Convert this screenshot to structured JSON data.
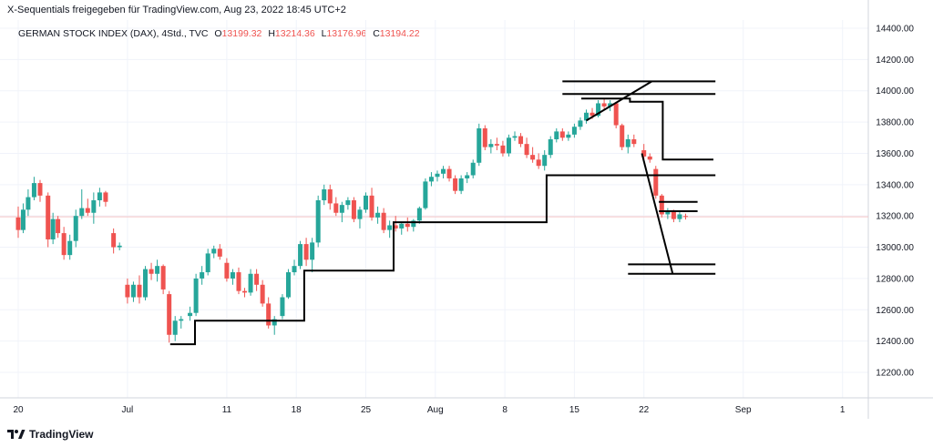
{
  "header": {
    "title": "X-Sequentials freigegeben für TradingView.com, Aug 23, 2022 18:45 UTC+2"
  },
  "legend": {
    "symbol": "GERMAN STOCK INDEX (DAX), 4Std., TVC",
    "o_label": "O",
    "o_value": "13199.32",
    "h_label": "H",
    "h_value": "13214.36",
    "l_label": "L",
    "l_value": "13176.96",
    "c_label": "C",
    "c_value": "13194.22"
  },
  "brand": {
    "name": "TradingView",
    "icon": "tradingview-logo-icon"
  },
  "colors": {
    "up": "#26a69a",
    "down": "#ef5350",
    "drawing": "#000000",
    "grid": "#f0f3fa",
    "last_price_line": "#f7c5c5"
  },
  "chart_data": {
    "type": "candlestick",
    "title": "",
    "ylim": [
      12050,
      14500
    ],
    "y_ticks": [
      "12200.00",
      "12400.00",
      "12600.00",
      "12800.00",
      "13000.00",
      "13200.00",
      "13400.00",
      "13600.00",
      "13800.00",
      "14000.00",
      "14200.00",
      "14400.00"
    ],
    "y_tick_values": [
      12200,
      12400,
      12600,
      12800,
      13000,
      13200,
      13400,
      13600,
      13800,
      14000,
      14200,
      14400
    ],
    "x_ticks": [
      "20",
      "Jul",
      "11",
      "18",
      "25",
      "Aug",
      "8",
      "15",
      "22",
      "Sep",
      "1"
    ],
    "x_tick_days": [
      0,
      11,
      21,
      28,
      35,
      42,
      49,
      56,
      63,
      73,
      83
    ],
    "x_days_note_hidden": true,
    "last_price": 13194.22,
    "candles": [
      {
        "d": 0,
        "o": 13190,
        "h": 13260,
        "l": 13060,
        "c": 13110
      },
      {
        "d": 0.5,
        "o": 13110,
        "h": 13280,
        "l": 13090,
        "c": 13240
      },
      {
        "d": 1,
        "o": 13240,
        "h": 13370,
        "l": 13200,
        "c": 13320
      },
      {
        "d": 1.6,
        "o": 13320,
        "h": 13450,
        "l": 13300,
        "c": 13410
      },
      {
        "d": 2.2,
        "o": 13410,
        "h": 13430,
        "l": 13290,
        "c": 13330
      },
      {
        "d": 3,
        "o": 13330,
        "h": 13350,
        "l": 13000,
        "c": 13050
      },
      {
        "d": 3.5,
        "o": 13050,
        "h": 13220,
        "l": 13020,
        "c": 13180
      },
      {
        "d": 4,
        "o": 13180,
        "h": 13200,
        "l": 13060,
        "c": 13090
      },
      {
        "d": 4.6,
        "o": 13090,
        "h": 13130,
        "l": 12920,
        "c": 12950
      },
      {
        "d": 5.2,
        "o": 12950,
        "h": 13080,
        "l": 12920,
        "c": 13040
      },
      {
        "d": 5.8,
        "o": 13040,
        "h": 13240,
        "l": 13000,
        "c": 13200
      },
      {
        "d": 6.4,
        "o": 13200,
        "h": 13370,
        "l": 13180,
        "c": 13250
      },
      {
        "d": 7,
        "o": 13250,
        "h": 13310,
        "l": 13200,
        "c": 13220
      },
      {
        "d": 7.6,
        "o": 13220,
        "h": 13350,
        "l": 13150,
        "c": 13300
      },
      {
        "d": 8.2,
        "o": 13300,
        "h": 13380,
        "l": 13260,
        "c": 13350
      },
      {
        "d": 8.8,
        "o": 13350,
        "h": 13360,
        "l": 13260,
        "c": 13290
      },
      {
        "d": 9.6,
        "o": 13090,
        "h": 13120,
        "l": 12960,
        "c": 13000
      },
      {
        "d": 10.2,
        "o": 13000,
        "h": 13030,
        "l": 12980,
        "c": 13010
      },
      {
        "d": 11,
        "o": 12760,
        "h": 12800,
        "l": 12640,
        "c": 12680
      },
      {
        "d": 11.6,
        "o": 12680,
        "h": 12780,
        "l": 12650,
        "c": 12760
      },
      {
        "d": 12.2,
        "o": 12760,
        "h": 12820,
        "l": 12640,
        "c": 12680
      },
      {
        "d": 12.8,
        "o": 12680,
        "h": 12880,
        "l": 12660,
        "c": 12860
      },
      {
        "d": 13.4,
        "o": 12860,
        "h": 12900,
        "l": 12790,
        "c": 12830
      },
      {
        "d": 14,
        "o": 12830,
        "h": 12920,
        "l": 12780,
        "c": 12880
      },
      {
        "d": 14.6,
        "o": 12880,
        "h": 12890,
        "l": 12700,
        "c": 12730
      },
      {
        "d": 15.2,
        "o": 12700,
        "h": 12720,
        "l": 12390,
        "c": 12440
      },
      {
        "d": 15.8,
        "o": 12440,
        "h": 12560,
        "l": 12400,
        "c": 12530
      },
      {
        "d": 16.4,
        "o": 12530,
        "h": 12560,
        "l": 12480,
        "c": 12540
      },
      {
        "d": 17.3,
        "o": 12560,
        "h": 12620,
        "l": 12530,
        "c": 12580
      },
      {
        "d": 17.9,
        "o": 12580,
        "h": 12830,
        "l": 12560,
        "c": 12800
      },
      {
        "d": 18.5,
        "o": 12800,
        "h": 12880,
        "l": 12760,
        "c": 12840
      },
      {
        "d": 19.1,
        "o": 12840,
        "h": 12990,
        "l": 12820,
        "c": 12960
      },
      {
        "d": 19.7,
        "o": 12960,
        "h": 13010,
        "l": 12930,
        "c": 12990
      },
      {
        "d": 20.3,
        "o": 12990,
        "h": 13020,
        "l": 12920,
        "c": 12940
      },
      {
        "d": 21,
        "o": 12900,
        "h": 12930,
        "l": 12780,
        "c": 12800
      },
      {
        "d": 21.6,
        "o": 12800,
        "h": 12860,
        "l": 12760,
        "c": 12840
      },
      {
        "d": 22.2,
        "o": 12840,
        "h": 12870,
        "l": 12700,
        "c": 12720
      },
      {
        "d": 22.8,
        "o": 12720,
        "h": 12740,
        "l": 12680,
        "c": 12710
      },
      {
        "d": 23.4,
        "o": 12710,
        "h": 12860,
        "l": 12690,
        "c": 12830
      },
      {
        "d": 24,
        "o": 12830,
        "h": 12860,
        "l": 12720,
        "c": 12760
      },
      {
        "d": 24.6,
        "o": 12760,
        "h": 12790,
        "l": 12620,
        "c": 12640
      },
      {
        "d": 25.2,
        "o": 12640,
        "h": 12680,
        "l": 12480,
        "c": 12500
      },
      {
        "d": 25.8,
        "o": 12500,
        "h": 12560,
        "l": 12440,
        "c": 12540
      },
      {
        "d": 26.6,
        "o": 12560,
        "h": 12700,
        "l": 12540,
        "c": 12680
      },
      {
        "d": 27.2,
        "o": 12680,
        "h": 12860,
        "l": 12670,
        "c": 12840
      },
      {
        "d": 27.8,
        "o": 12840,
        "h": 12920,
        "l": 12820,
        "c": 12880
      },
      {
        "d": 28.4,
        "o": 12880,
        "h": 13040,
        "l": 12860,
        "c": 13020
      },
      {
        "d": 29,
        "o": 13020,
        "h": 13060,
        "l": 12880,
        "c": 12920
      },
      {
        "d": 29.6,
        "o": 12920,
        "h": 13060,
        "l": 12840,
        "c": 13030
      },
      {
        "d": 30.2,
        "o": 13030,
        "h": 13330,
        "l": 13000,
        "c": 13300
      },
      {
        "d": 30.8,
        "o": 13300,
        "h": 13400,
        "l": 13270,
        "c": 13370
      },
      {
        "d": 31.4,
        "o": 13370,
        "h": 13400,
        "l": 13240,
        "c": 13280
      },
      {
        "d": 32,
        "o": 13280,
        "h": 13320,
        "l": 13200,
        "c": 13220
      },
      {
        "d": 32.6,
        "o": 13220,
        "h": 13290,
        "l": 13160,
        "c": 13270
      },
      {
        "d": 33.2,
        "o": 13270,
        "h": 13320,
        "l": 13240,
        "c": 13300
      },
      {
        "d": 33.8,
        "o": 13300,
        "h": 13320,
        "l": 13160,
        "c": 13180
      },
      {
        "d": 34.4,
        "o": 13180,
        "h": 13260,
        "l": 13120,
        "c": 13240
      },
      {
        "d": 35,
        "o": 13240,
        "h": 13350,
        "l": 13220,
        "c": 13330
      },
      {
        "d": 35.6,
        "o": 13330,
        "h": 13380,
        "l": 13170,
        "c": 13190
      },
      {
        "d": 36.2,
        "o": 13190,
        "h": 13260,
        "l": 13150,
        "c": 13220
      },
      {
        "d": 36.8,
        "o": 13220,
        "h": 13250,
        "l": 13090,
        "c": 13110
      },
      {
        "d": 37.4,
        "o": 13110,
        "h": 13170,
        "l": 13060,
        "c": 13140
      },
      {
        "d": 38,
        "o": 13140,
        "h": 13200,
        "l": 13100,
        "c": 13120
      },
      {
        "d": 38.6,
        "o": 13120,
        "h": 13160,
        "l": 13080,
        "c": 13150
      },
      {
        "d": 39.2,
        "o": 13150,
        "h": 13190,
        "l": 13100,
        "c": 13130
      },
      {
        "d": 39.8,
        "o": 13130,
        "h": 13180,
        "l": 13100,
        "c": 13170
      },
      {
        "d": 40.4,
        "o": 13170,
        "h": 13260,
        "l": 13150,
        "c": 13250
      },
      {
        "d": 41,
        "o": 13250,
        "h": 13440,
        "l": 13240,
        "c": 13420
      },
      {
        "d": 41.6,
        "o": 13420,
        "h": 13480,
        "l": 13390,
        "c": 13450
      },
      {
        "d": 42.2,
        "o": 13450,
        "h": 13490,
        "l": 13420,
        "c": 13470
      },
      {
        "d": 42.8,
        "o": 13470,
        "h": 13520,
        "l": 13440,
        "c": 13500
      },
      {
        "d": 43.4,
        "o": 13500,
        "h": 13520,
        "l": 13420,
        "c": 13440
      },
      {
        "d": 44,
        "o": 13440,
        "h": 13460,
        "l": 13340,
        "c": 13360
      },
      {
        "d": 44.6,
        "o": 13360,
        "h": 13460,
        "l": 13340,
        "c": 13440
      },
      {
        "d": 45.2,
        "o": 13440,
        "h": 13480,
        "l": 13410,
        "c": 13460
      },
      {
        "d": 45.8,
        "o": 13460,
        "h": 13560,
        "l": 13440,
        "c": 13540
      },
      {
        "d": 46.4,
        "o": 13540,
        "h": 13790,
        "l": 13520,
        "c": 13760
      },
      {
        "d": 47,
        "o": 13760,
        "h": 13780,
        "l": 13620,
        "c": 13640
      },
      {
        "d": 47.6,
        "o": 13640,
        "h": 13690,
        "l": 13600,
        "c": 13660
      },
      {
        "d": 48.2,
        "o": 13660,
        "h": 13700,
        "l": 13620,
        "c": 13650
      },
      {
        "d": 48.8,
        "o": 13650,
        "h": 13680,
        "l": 13580,
        "c": 13600
      },
      {
        "d": 49.4,
        "o": 13600,
        "h": 13720,
        "l": 13580,
        "c": 13700
      },
      {
        "d": 50,
        "o": 13700,
        "h": 13740,
        "l": 13680,
        "c": 13710
      },
      {
        "d": 50.6,
        "o": 13710,
        "h": 13730,
        "l": 13640,
        "c": 13660
      },
      {
        "d": 51.2,
        "o": 13660,
        "h": 13700,
        "l": 13570,
        "c": 13590
      },
      {
        "d": 51.8,
        "o": 13590,
        "h": 13640,
        "l": 13540,
        "c": 13560
      },
      {
        "d": 52.4,
        "o": 13560,
        "h": 13600,
        "l": 13500,
        "c": 13520
      },
      {
        "d": 53,
        "o": 13520,
        "h": 13620,
        "l": 13490,
        "c": 13590
      },
      {
        "d": 53.6,
        "o": 13590,
        "h": 13710,
        "l": 13570,
        "c": 13690
      },
      {
        "d": 54.2,
        "o": 13690,
        "h": 13760,
        "l": 13670,
        "c": 13740
      },
      {
        "d": 54.8,
        "o": 13740,
        "h": 13760,
        "l": 13680,
        "c": 13700
      },
      {
        "d": 55.4,
        "o": 13700,
        "h": 13740,
        "l": 13680,
        "c": 13720
      },
      {
        "d": 56,
        "o": 13720,
        "h": 13790,
        "l": 13700,
        "c": 13770
      },
      {
        "d": 56.6,
        "o": 13770,
        "h": 13830,
        "l": 13750,
        "c": 13810
      },
      {
        "d": 57.2,
        "o": 13810,
        "h": 13880,
        "l": 13790,
        "c": 13860
      },
      {
        "d": 57.8,
        "o": 13860,
        "h": 13890,
        "l": 13820,
        "c": 13840
      },
      {
        "d": 58.4,
        "o": 13840,
        "h": 13940,
        "l": 13830,
        "c": 13920
      },
      {
        "d": 59,
        "o": 13920,
        "h": 13950,
        "l": 13880,
        "c": 13900
      },
      {
        "d": 59.6,
        "o": 13900,
        "h": 13940,
        "l": 13870,
        "c": 13920
      },
      {
        "d": 60.2,
        "o": 13920,
        "h": 13930,
        "l": 13760,
        "c": 13780
      },
      {
        "d": 60.8,
        "o": 13780,
        "h": 13790,
        "l": 13620,
        "c": 13640
      },
      {
        "d": 61.4,
        "o": 13640,
        "h": 13720,
        "l": 13600,
        "c": 13690
      },
      {
        "d": 62,
        "o": 13690,
        "h": 13720,
        "l": 13640,
        "c": 13660
      },
      {
        "d": 63,
        "o": 13620,
        "h": 13660,
        "l": 13560,
        "c": 13580
      },
      {
        "d": 63.6,
        "o": 13580,
        "h": 13600,
        "l": 13540,
        "c": 13560
      },
      {
        "d": 64.2,
        "o": 13500,
        "h": 13520,
        "l": 13310,
        "c": 13330
      },
      {
        "d": 64.8,
        "o": 13330,
        "h": 13340,
        "l": 13190,
        "c": 13210
      },
      {
        "d": 65.4,
        "o": 13210,
        "h": 13250,
        "l": 13180,
        "c": 13230
      },
      {
        "d": 66,
        "o": 13230,
        "h": 13240,
        "l": 13160,
        "c": 13180
      },
      {
        "d": 66.6,
        "o": 13180,
        "h": 13230,
        "l": 13160,
        "c": 13210
      },
      {
        "d": 67.2,
        "o": 13199.32,
        "h": 13214.36,
        "l": 13176.96,
        "c": 13194.22
      }
    ],
    "drawings": [
      {
        "name": "drawing-step-line",
        "points": [
          [
            15.3,
            12380
          ],
          [
            17.8,
            12380
          ],
          [
            17.8,
            12530
          ],
          [
            25.6,
            12530
          ],
          [
            25.6,
            12530
          ],
          [
            28.8,
            12530
          ],
          [
            28.8,
            12850
          ],
          [
            37.8,
            12850
          ],
          [
            37.8,
            13160
          ],
          [
            53.2,
            13160
          ],
          [
            53.2,
            13460
          ],
          [
            70.2,
            13460
          ]
        ]
      },
      {
        "name": "drawing-upper-step-line",
        "points": [
          [
            56.7,
            13950
          ],
          [
            61.6,
            13950
          ],
          [
            61.6,
            13930
          ],
          [
            64.9,
            13930
          ],
          [
            64.9,
            13560
          ],
          [
            70,
            13560
          ]
        ]
      },
      {
        "name": "drawing-trendline-up",
        "points": [
          [
            57.2,
            13810
          ],
          [
            63.8,
            14060
          ]
        ]
      },
      {
        "name": "drawing-trendline-down",
        "points": [
          [
            62.8,
            13600
          ],
          [
            65.9,
            12830
          ]
        ]
      },
      {
        "name": "drawing-hline-1",
        "points": [
          [
            54.8,
            14060
          ],
          [
            70.2,
            14060
          ]
        ]
      },
      {
        "name": "drawing-hline-2",
        "points": [
          [
            54.8,
            13980
          ],
          [
            70.2,
            13980
          ]
        ]
      },
      {
        "name": "drawing-hline-3",
        "points": [
          [
            64.5,
            13290
          ],
          [
            68.4,
            13290
          ]
        ]
      },
      {
        "name": "drawing-hline-4",
        "points": [
          [
            64.5,
            13230
          ],
          [
            68.4,
            13230
          ]
        ]
      },
      {
        "name": "drawing-hline-5",
        "points": [
          [
            61.4,
            12890
          ],
          [
            70.2,
            12890
          ]
        ]
      },
      {
        "name": "drawing-hline-6",
        "points": [
          [
            61.4,
            12830
          ],
          [
            70.2,
            12830
          ]
        ]
      }
    ]
  }
}
